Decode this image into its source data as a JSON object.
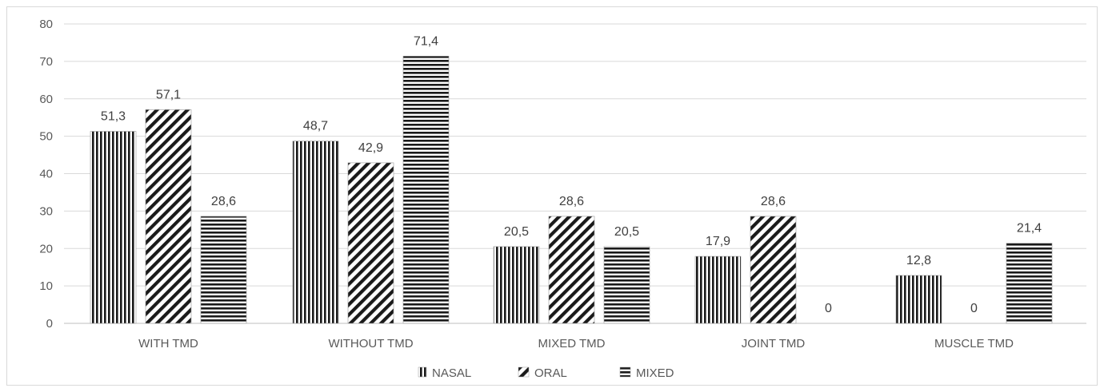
{
  "chart_data": {
    "type": "bar",
    "categories": [
      "WITH TMD",
      "WITHOUT TMD",
      "MIXED TMD",
      "JOINT TMD",
      "MUSCLE TMD"
    ],
    "series": [
      {
        "name": "NASAL",
        "values": [
          51.3,
          48.7,
          20.5,
          17.9,
          12.8
        ],
        "labels": [
          "51,3",
          "48,7",
          "20,5",
          "17,9",
          "12,8"
        ],
        "pattern": "vertical-lines"
      },
      {
        "name": "ORAL",
        "values": [
          57.1,
          42.9,
          28.6,
          28.6,
          0
        ],
        "labels": [
          "57,1",
          "42,9",
          "28,6",
          "28,6",
          "0"
        ],
        "pattern": "diagonal-lines"
      },
      {
        "name": "MIXED",
        "values": [
          28.6,
          71.4,
          20.5,
          0,
          21.4
        ],
        "labels": [
          "28,6",
          "71,4",
          "20,5",
          "0",
          "21,4"
        ],
        "pattern": "horizontal-lines"
      }
    ],
    "title": "",
    "xlabel": "",
    "ylabel": "",
    "ylim": [
      0,
      80
    ],
    "yticks": [
      "0",
      "10",
      "20",
      "30",
      "40",
      "50",
      "60",
      "70",
      "80"
    ],
    "grid": true,
    "legend_position": "bottom",
    "colors": {
      "bar_ink": "#1a1a1a",
      "gridline": "#d9d9d9",
      "axis_text": "#595959"
    }
  }
}
